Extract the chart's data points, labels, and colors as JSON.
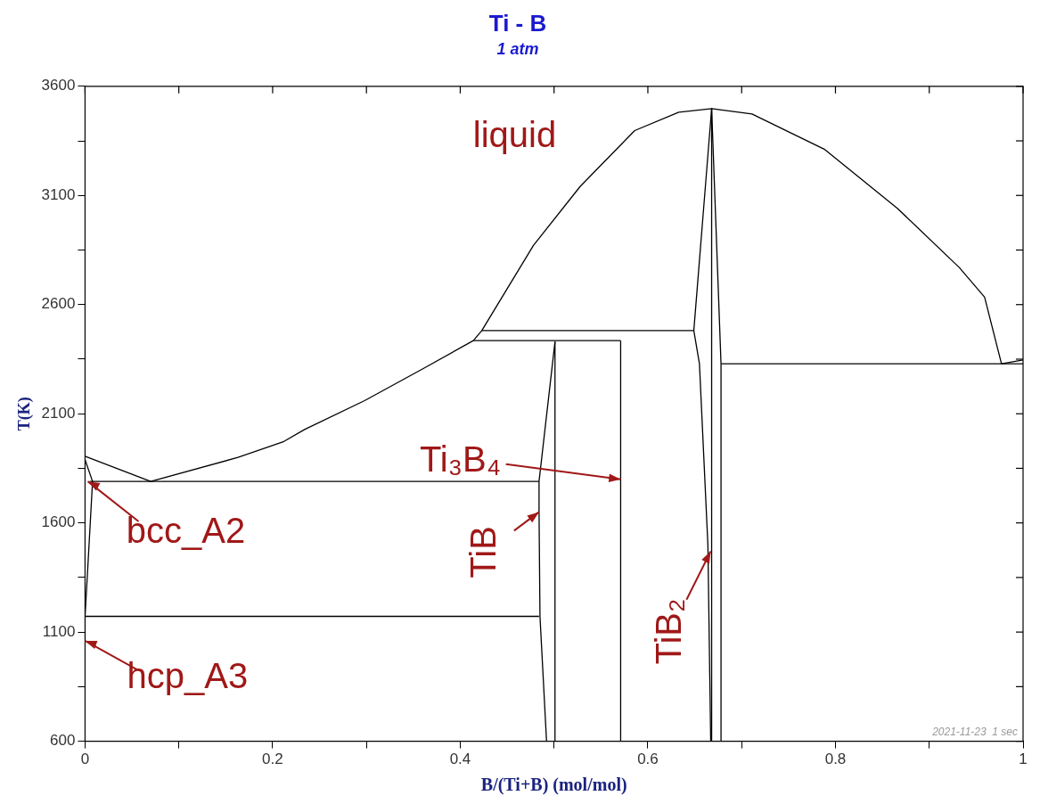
{
  "chart_data": {
    "type": "line",
    "title": "Ti - B",
    "subtitle": "1 atm",
    "xlabel": "B/(Ti+B) (mol/mol)",
    "ylabel": "T(K)",
    "xlim": [
      0,
      1
    ],
    "ylim": [
      600,
      3600
    ],
    "xticks": [
      0,
      {
        "value": 0.1,
        "label": null
      },
      0.2,
      {
        "value": 0.3,
        "label": null
      },
      0.4,
      {
        "value": 0.5,
        "label": null
      },
      0.6,
      {
        "value": 0.7,
        "label": null
      },
      0.8,
      {
        "value": 0.9,
        "label": null
      },
      1
    ],
    "yticks": [
      600,
      {
        "value": 850,
        "label": null
      },
      1100,
      {
        "value": 1350,
        "label": null
      },
      1600,
      {
        "value": 1850,
        "label": null
      },
      2100,
      {
        "value": 2350,
        "label": null
      },
      2600,
      {
        "value": 2850,
        "label": null
      },
      3100,
      {
        "value": 3350,
        "label": null
      },
      3600
    ],
    "grid": false,
    "legend": false,
    "marker": "none",
    "line_style": "solid",
    "series": [
      {
        "color": "#000000",
        "x": [
          0,
          0.07,
          0.163,
          0.212,
          0.234,
          0.298,
          0.361,
          0.414,
          0.423,
          0.478,
          0.528,
          0.586,
          0.633,
          0.668,
          0.711,
          0.788,
          0.866,
          0.932,
          0.959,
          0.977,
          1
        ],
        "values": [
          1905,
          1790,
          1900,
          1973,
          2028,
          2160,
          2308,
          2435,
          2481,
          2871,
          3142,
          3397,
          3481,
          3498,
          3473,
          3312,
          3041,
          2770,
          2634,
          2329,
          2346
        ]
      },
      {
        "color": "#000000",
        "x": [
          0.005,
          0.484
        ],
        "values": [
          1790,
          1790
        ]
      },
      {
        "color": "#000000",
        "x": [
          0,
          0.484
        ],
        "values": [
          1172,
          1172
        ]
      },
      {
        "color": "#000000",
        "x": [
          0.414,
          0.571
        ],
        "values": [
          2435,
          2435
        ]
      },
      {
        "color": "#000000",
        "x": [
          0.423,
          0.649
        ],
        "values": [
          2481,
          2481
        ]
      },
      {
        "color": "#000000",
        "x": [
          0.678,
          1
        ],
        "values": [
          2329,
          2329
        ]
      },
      {
        "color": "#000000",
        "x": [
          0.501,
          0.501
        ],
        "values": [
          600,
          2430
        ]
      },
      {
        "color": "#000000",
        "x": [
          0.501,
          0.484,
          0.484,
          0.485,
          0.492
        ],
        "values": [
          2430,
          1790,
          1650,
          1172,
          600
        ]
      },
      {
        "color": "#000000",
        "x": [
          0.571,
          0.571
        ],
        "values": [
          600,
          2435
        ]
      },
      {
        "color": "#000000",
        "x": [
          0.668,
          0.668
        ],
        "values": [
          600,
          3498
        ]
      },
      {
        "color": "#000000",
        "x": [
          0.668,
          0.649,
          0.655,
          0.664,
          0.667
        ],
        "values": [
          3498,
          2481,
          2329,
          1500,
          600
        ]
      },
      {
        "color": "#000000",
        "x": [
          0.668,
          0.678,
          0.678
        ],
        "values": [
          3498,
          2329,
          600
        ]
      },
      {
        "color": "#000000",
        "x": [
          0,
          0.008,
          0.003,
          0,
          0
        ],
        "values": [
          1890,
          1790,
          1400,
          1172,
          1060
        ]
      }
    ],
    "annotations": [
      "liquid",
      {
        "text": "Ti₃B₄",
        "x": 0.571,
        "y": 1800
      },
      {
        "text": "TiB",
        "x": 0.484,
        "y": 1650
      },
      {
        "text": "TiB₂",
        "x": 0.667,
        "y": 1470
      },
      {
        "text": "bcc_A2",
        "x": 0.003,
        "y": 1790
      },
      {
        "text": "hcp_A3",
        "x": 0,
        "y": 1060
      },
      "2021-11-23  1 sec"
    ]
  }
}
